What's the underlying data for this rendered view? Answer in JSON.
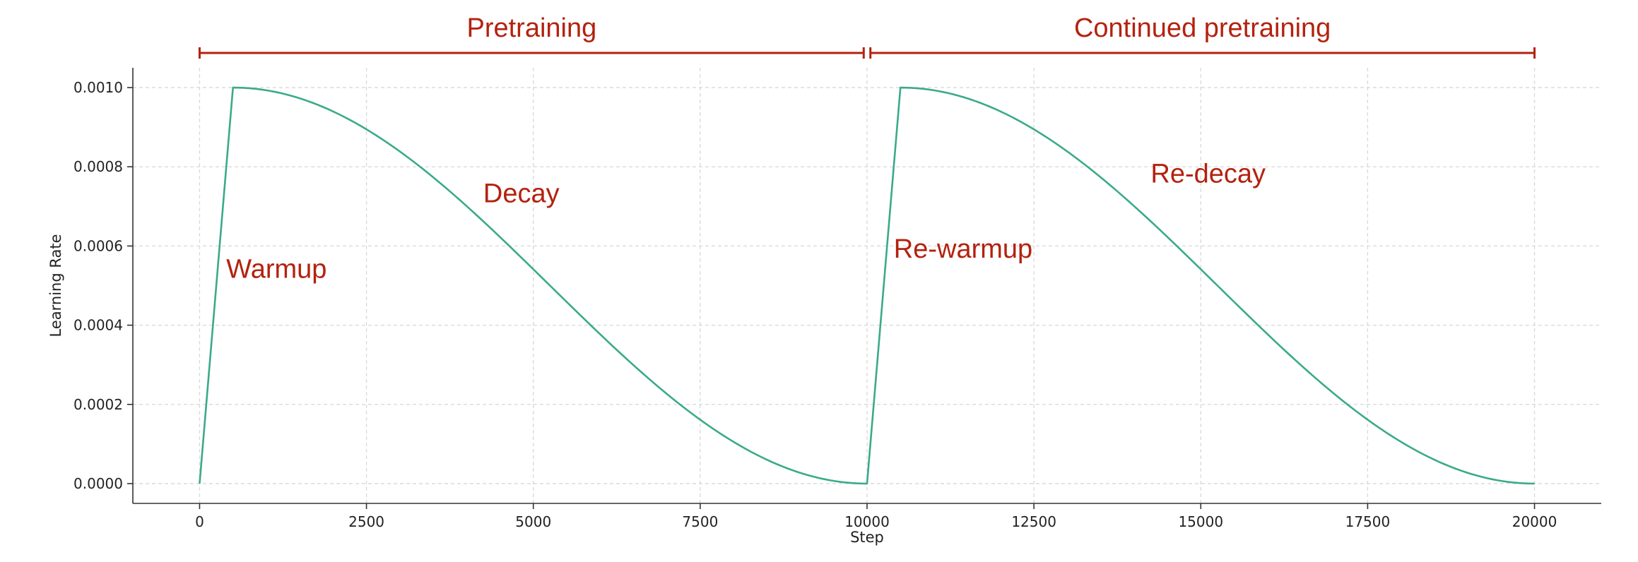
{
  "chart_data": {
    "type": "line",
    "xlabel": "Step",
    "ylabel": "Learning Rate",
    "xlim": [
      -1000,
      21000
    ],
    "ylim": [
      -5e-05,
      0.00105
    ],
    "x_ticks": [
      0,
      2500,
      5000,
      7500,
      10000,
      12500,
      15000,
      17500,
      20000
    ],
    "x_tick_labels": [
      "0",
      "2500",
      "5000",
      "7500",
      "10000",
      "12500",
      "15000",
      "17500",
      "20000"
    ],
    "y_ticks": [
      0,
      0.0002,
      0.0004,
      0.0006,
      0.0008,
      0.001
    ],
    "y_tick_labels": [
      "0.0000",
      "0.0002",
      "0.0004",
      "0.0006",
      "0.0008",
      "0.0010"
    ],
    "grid": true,
    "line_color": "#3aaa8a",
    "annotation_color": "#b3220f",
    "series": [
      {
        "segments": [
          {
            "kind": "warmup",
            "x_start": 0,
            "x_end": 500,
            "y_start": 0,
            "y_end": 0.001
          },
          {
            "kind": "cosine-decay",
            "x_start": 500,
            "x_end": 10000,
            "y_start": 0.001,
            "y_end": 0
          },
          {
            "kind": "warmup",
            "x_start": 10000,
            "x_end": 10500,
            "y_start": 0,
            "y_end": 0.001
          },
          {
            "kind": "cosine-decay",
            "x_start": 10500,
            "x_end": 20000,
            "y_start": 0.001,
            "y_end": 0
          }
        ]
      }
    ],
    "annotations": [
      {
        "text": "Warmup",
        "x": 400,
        "y": 0.00052
      },
      {
        "text": "Decay",
        "x": 4250,
        "y": 0.00071
      },
      {
        "text": "Re-warmup",
        "x": 10400,
        "y": 0.00057
      },
      {
        "text": "Re-decay",
        "x": 14250,
        "y": 0.00076
      }
    ],
    "phases": [
      {
        "label": "Pretraining",
        "x_start": 0,
        "x_end": 9950
      },
      {
        "label": "Continued pretraining",
        "x_start": 10050,
        "x_end": 20000
      }
    ]
  }
}
